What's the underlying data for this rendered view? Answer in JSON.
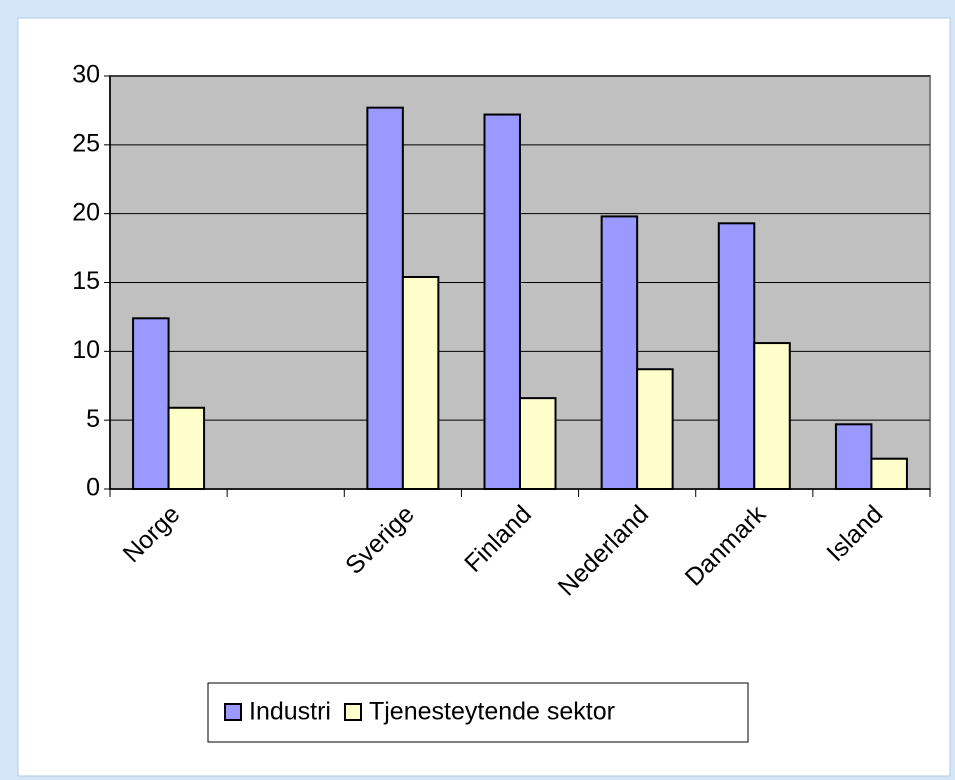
{
  "chart_data": {
    "type": "bar",
    "categories": [
      "Norge",
      null,
      "Sverige",
      "Finland",
      "Nederland",
      "Danmark",
      "Island"
    ],
    "series": [
      {
        "name": "Industri",
        "color": "#9999ff",
        "values": [
          12.4,
          null,
          27.7,
          27.2,
          19.8,
          19.3,
          4.7
        ]
      },
      {
        "name": "Tjenesteytende sektor",
        "color": "#ffffcc",
        "values": [
          5.9,
          null,
          15.4,
          6.6,
          8.7,
          10.6,
          2.2
        ]
      }
    ],
    "ylim": [
      0,
      30
    ],
    "yticks": [
      0,
      5,
      10,
      15,
      20,
      25,
      30
    ],
    "grid": true,
    "legend": "bottom"
  }
}
